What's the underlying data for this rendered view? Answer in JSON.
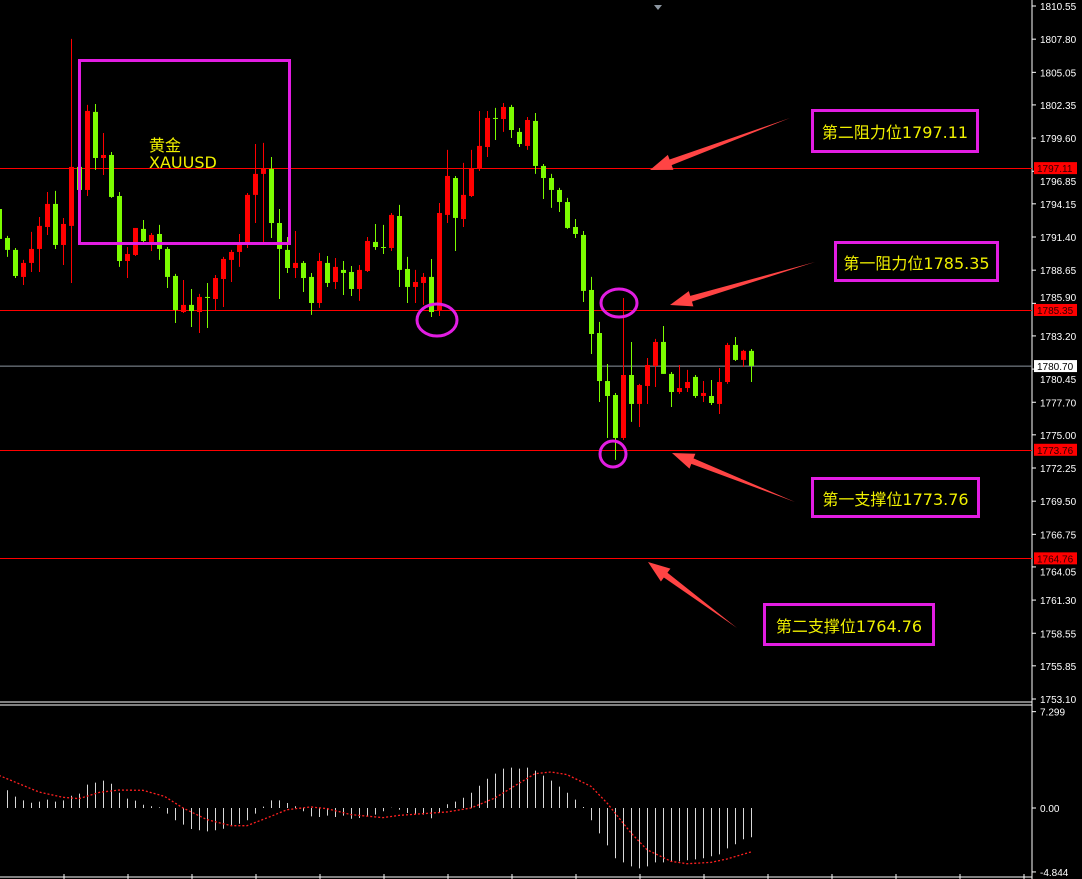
{
  "chart_data": {
    "type": "candlestick",
    "symbol_label": "黄金",
    "symbol_code": "XAUUSD",
    "colors": {
      "up": "#ff0000",
      "down": "#7cfc00",
      "background": "#000000",
      "level_line": "#ff0000",
      "current_price_line": "#8c96a0",
      "annotation_box": "#e21de2",
      "annotation_text": "#f0f000",
      "arrow": "#ff4444"
    },
    "price_axis": {
      "ylim": [
        1753.1,
        1810.55
      ],
      "ticks": [
        "1810.55",
        "1807.80",
        "1805.05",
        "1802.35",
        "1799.60",
        "1796.85",
        "1794.15",
        "1791.40",
        "1788.65",
        "1785.90",
        "1783.20",
        "1780.45",
        "1777.70",
        "1775.00",
        "1772.25",
        "1769.50",
        "1766.75",
        "1764.05",
        "1761.30",
        "1758.55",
        "1755.85",
        "1753.10"
      ]
    },
    "current_price": "1780.70",
    "levels": [
      {
        "price": "1797.11",
        "label": "第二阻力位1797.11"
      },
      {
        "price": "1785.35",
        "label": "第一阻力位1785.35"
      },
      {
        "price": "1773.76",
        "label": "第一支撑位1773.76"
      },
      {
        "price": "1764.76",
        "label": "第二支撑位1764.76"
      }
    ],
    "ohlc": [
      [
        1793.72,
        1794.06,
        1790.99,
        1791.24
      ],
      [
        1791.32,
        1791.49,
        1789.75,
        1790.33
      ],
      [
        1790.33,
        1790.49,
        1788.0,
        1788.17
      ],
      [
        1788.09,
        1789.5,
        1787.42,
        1789.25
      ],
      [
        1789.25,
        1791.82,
        1788.5,
        1790.41
      ],
      [
        1790.41,
        1793.06,
        1788.5,
        1792.32
      ],
      [
        1792.23,
        1795.13,
        1791.57,
        1794.14
      ],
      [
        1794.14,
        1795.22,
        1790.41,
        1790.74
      ],
      [
        1790.74,
        1792.98,
        1789.08,
        1792.48
      ],
      [
        1792.32,
        1807.82,
        1787.59,
        1797.21
      ],
      [
        1797.21,
        1797.37,
        1795.13,
        1795.3
      ],
      [
        1795.3,
        1802.35,
        1794.8,
        1801.85
      ],
      [
        1801.77,
        1802.43,
        1796.96,
        1797.95
      ],
      [
        1797.95,
        1800.02,
        1796.54,
        1798.2
      ],
      [
        1798.2,
        1798.45,
        1794.64,
        1794.72
      ],
      [
        1794.8,
        1795.13,
        1788.92,
        1789.41
      ],
      [
        1789.41,
        1790.57,
        1788.0,
        1789.99
      ],
      [
        1789.91,
        1792.15,
        1789.83,
        1792.15
      ],
      [
        1792.07,
        1792.81,
        1790.91,
        1791.07
      ],
      [
        1790.99,
        1791.73,
        1790.24,
        1791.57
      ],
      [
        1791.65,
        1792.4,
        1789.5,
        1790.41
      ],
      [
        1790.41,
        1790.57,
        1787.17,
        1788.09
      ],
      [
        1788.17,
        1788.34,
        1784.27,
        1785.35
      ],
      [
        1785.18,
        1787.84,
        1785.1,
        1785.77
      ],
      [
        1785.77,
        1787.09,
        1783.94,
        1785.27
      ],
      [
        1785.18,
        1786.68,
        1783.44,
        1786.43
      ],
      [
        1786.43,
        1787.59,
        1783.86,
        1786.39
      ],
      [
        1786.26,
        1788.25,
        1785.35,
        1788.0
      ],
      [
        1787.92,
        1789.75,
        1785.6,
        1789.58
      ],
      [
        1789.5,
        1790.33,
        1787.67,
        1790.16
      ],
      [
        1790.16,
        1791.65,
        1788.92,
        1790.74
      ],
      [
        1790.74,
        1795.05,
        1790.49,
        1794.89
      ],
      [
        1794.89,
        1799.11,
        1792.56,
        1796.63
      ],
      [
        1796.63,
        1799.2,
        1790.99,
        1797.04
      ],
      [
        1797.04,
        1798.03,
        1791.32,
        1792.56
      ],
      [
        1792.56,
        1793.72,
        1786.26,
        1790.41
      ],
      [
        1790.33,
        1791.4,
        1788.42,
        1788.83
      ],
      [
        1788.83,
        1791.9,
        1788.0,
        1789.25
      ],
      [
        1789.25,
        1789.41,
        1786.84,
        1788.0
      ],
      [
        1788.09,
        1788.42,
        1784.94,
        1785.93
      ],
      [
        1785.93,
        1790.08,
        1785.52,
        1789.41
      ],
      [
        1789.25,
        1789.83,
        1787.26,
        1787.59
      ],
      [
        1787.67,
        1789.66,
        1787.09,
        1788.92
      ],
      [
        1788.67,
        1789.41,
        1786.59,
        1788.42
      ],
      [
        1788.5,
        1789.0,
        1786.51,
        1787.09
      ],
      [
        1787.09,
        1789.08,
        1786.1,
        1788.67
      ],
      [
        1788.58,
        1791.4,
        1788.5,
        1791.07
      ],
      [
        1790.99,
        1792.48,
        1790.33,
        1790.57
      ],
      [
        1790.57,
        1792.4,
        1789.99,
        1790.53
      ],
      [
        1790.49,
        1793.39,
        1790.24,
        1793.23
      ],
      [
        1793.14,
        1794.06,
        1787.26,
        1788.67
      ],
      [
        1788.75,
        1789.75,
        1785.93,
        1787.26
      ],
      [
        1787.26,
        1788.67,
        1785.93,
        1787.67
      ],
      [
        1787.59,
        1788.42,
        1785.77,
        1788.09
      ],
      [
        1788.09,
        1789.58,
        1784.77,
        1785.18
      ],
      [
        1785.27,
        1794.22,
        1784.85,
        1793.39
      ],
      [
        1793.23,
        1798.62,
        1792.56,
        1796.46
      ],
      [
        1796.29,
        1796.46,
        1790.24,
        1792.98
      ],
      [
        1792.89,
        1797.54,
        1792.23,
        1794.89
      ],
      [
        1794.8,
        1798.62,
        1794.72,
        1797.04
      ],
      [
        1797.04,
        1801.85,
        1796.87,
        1798.95
      ],
      [
        1798.86,
        1801.85,
        1798.03,
        1801.27
      ],
      [
        1801.27,
        1802.1,
        1799.44,
        1801.23
      ],
      [
        1801.18,
        1802.51,
        1800.11,
        1802.18
      ],
      [
        1802.18,
        1802.35,
        1799.61,
        1800.27
      ],
      [
        1800.11,
        1800.44,
        1798.86,
        1799.11
      ],
      [
        1798.95,
        1801.35,
        1798.62,
        1801.1
      ],
      [
        1801.02,
        1801.68,
        1796.63,
        1797.29
      ],
      [
        1797.29,
        1797.45,
        1794.55,
        1796.29
      ],
      [
        1796.29,
        1796.63,
        1793.81,
        1795.3
      ],
      [
        1795.3,
        1795.47,
        1793.47,
        1794.3
      ],
      [
        1794.3,
        1794.64,
        1792.07,
        1792.15
      ],
      [
        1792.23,
        1792.89,
        1791.32,
        1791.65
      ],
      [
        1791.57,
        1791.9,
        1786.01,
        1786.93
      ],
      [
        1787.01,
        1788.09,
        1781.7,
        1783.36
      ],
      [
        1783.44,
        1784.36,
        1777.72,
        1779.46
      ],
      [
        1779.46,
        1780.87,
        1774.74,
        1778.22
      ],
      [
        1778.3,
        1778.47,
        1772.92,
        1774.74
      ],
      [
        1774.74,
        1786.34,
        1774.57,
        1779.96
      ],
      [
        1779.96,
        1782.7,
        1776.07,
        1777.56
      ],
      [
        1777.56,
        1779.22,
        1775.65,
        1779.13
      ],
      [
        1779.05,
        1781.37,
        1777.56,
        1780.79
      ],
      [
        1780.71,
        1782.95,
        1778.97,
        1782.7
      ],
      [
        1782.7,
        1784.02,
        1780.05,
        1780.05
      ],
      [
        1780.05,
        1780.21,
        1777.31,
        1778.55
      ],
      [
        1778.55,
        1780.79,
        1778.39,
        1778.88
      ],
      [
        1778.88,
        1780.38,
        1778.55,
        1779.38
      ],
      [
        1779.8,
        1779.96,
        1778.06,
        1778.22
      ],
      [
        1778.22,
        1779.46,
        1777.72,
        1778.47
      ],
      [
        1778.22,
        1779.55,
        1777.47,
        1777.64
      ],
      [
        1777.56,
        1780.54,
        1776.73,
        1779.38
      ],
      [
        1779.38,
        1782.62,
        1779.22,
        1782.45
      ],
      [
        1782.45,
        1783.11,
        1781.12,
        1781.21
      ],
      [
        1781.21,
        1782.04,
        1780.63,
        1781.96
      ],
      [
        1781.96,
        1782.12,
        1779.38,
        1780.71
      ]
    ],
    "oscillator": {
      "axis_ticks": [
        "7.299",
        "0.00",
        "-4.844"
      ],
      "ylim": [
        -4.844,
        7.299
      ],
      "histogram": [
        1.5,
        1.34,
        0.86,
        0.58,
        0.4,
        0.48,
        0.63,
        0.48,
        0.58,
        0.93,
        1.09,
        1.77,
        1.92,
        2.07,
        1.84,
        1.16,
        0.71,
        0.56,
        0.25,
        0.13,
        0.05,
        -0.43,
        -0.93,
        -1.26,
        -1.59,
        -1.69,
        -1.77,
        -1.69,
        -1.57,
        -1.34,
        -1.19,
        -0.93,
        -0.43,
        0.1,
        0.58,
        0.58,
        0.38,
        0.13,
        -0.25,
        -0.63,
        -0.68,
        -0.58,
        -0.68,
        -0.58,
        -0.81,
        -0.76,
        -0.58,
        -0.5,
        -0.25,
        0.02,
        -0.13,
        -0.38,
        -0.45,
        -0.5,
        -0.78,
        -0.38,
        0.28,
        0.48,
        0.78,
        1.16,
        1.69,
        2.22,
        2.6,
        2.98,
        3.06,
        2.98,
        3.06,
        2.83,
        2.45,
        2.07,
        1.62,
        1.16,
        0.63,
        0.08,
        -0.93,
        -1.92,
        -2.83,
        -3.81,
        -4.12,
        -4.42,
        -4.57,
        -4.42,
        -4.12,
        -4.12,
        -4.04,
        -4.04,
        -3.96,
        -3.89,
        -3.81,
        -3.66,
        -3.51,
        -3.06,
        -2.75,
        -2.37,
        -2.22
      ],
      "signal_points": [
        [
          0,
          2.47
        ],
        [
          5,
          1.21
        ],
        [
          8,
          0.81
        ],
        [
          10,
          0.71
        ],
        [
          12.6,
          1.19
        ],
        [
          15,
          1.36
        ],
        [
          18,
          1.34
        ],
        [
          20.7,
          0.88
        ],
        [
          23,
          0.0
        ],
        [
          26,
          -0.88
        ],
        [
          29,
          -1.34
        ],
        [
          31,
          -1.34
        ],
        [
          34,
          -0.63
        ],
        [
          36,
          -0.13
        ],
        [
          39,
          0.08
        ],
        [
          41,
          -0.05
        ],
        [
          44,
          -0.5
        ],
        [
          48,
          -0.73
        ],
        [
          50,
          -0.56
        ],
        [
          53,
          -0.43
        ],
        [
          56,
          -0.3
        ],
        [
          59,
          0.0
        ],
        [
          62,
          0.76
        ],
        [
          64.5,
          1.69
        ],
        [
          67,
          2.6
        ],
        [
          69,
          2.73
        ],
        [
          71,
          2.53
        ],
        [
          74,
          1.64
        ],
        [
          76,
          0.38
        ],
        [
          79,
          -1.89
        ],
        [
          81,
          -3.16
        ],
        [
          84,
          -4.04
        ],
        [
          86,
          -4.22
        ],
        [
          89,
          -4.12
        ],
        [
          91,
          -3.86
        ],
        [
          94,
          -3.33
        ]
      ]
    }
  }
}
